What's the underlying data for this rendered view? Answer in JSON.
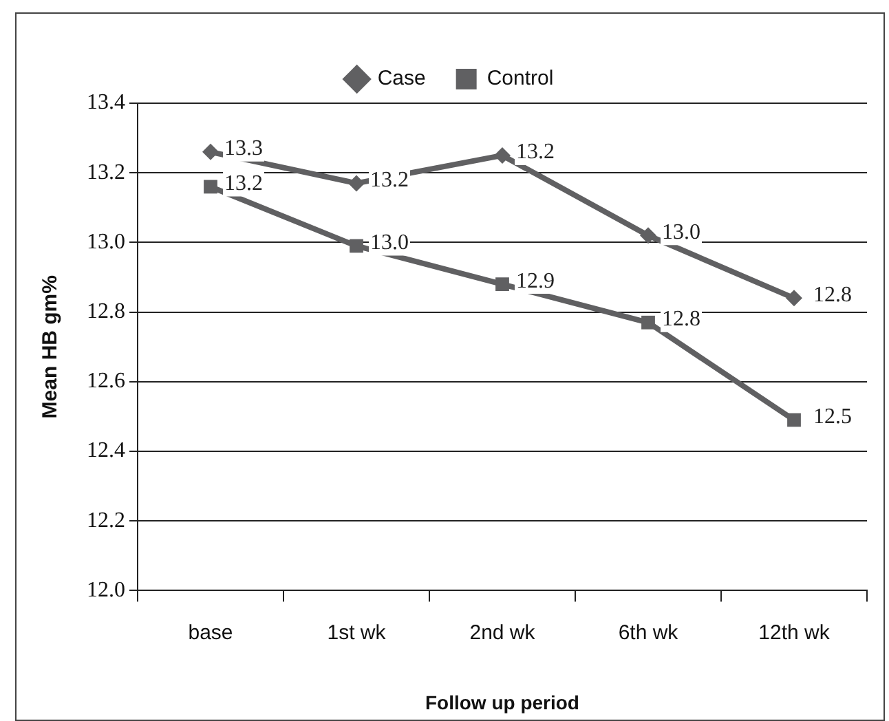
{
  "chart_data": {
    "type": "line",
    "xlabel": "Follow up period",
    "ylabel": "Mean HB gm%",
    "categories": [
      "base",
      "1st wk",
      "2nd wk",
      "6th wk",
      "12th wk"
    ],
    "series": [
      {
        "name": "Case",
        "color": "#606062",
        "marker": "diamond",
        "values": [
          13.26,
          13.17,
          13.25,
          13.02,
          12.84
        ],
        "value_labels": [
          "13.3",
          "13.2",
          "13.2",
          "13.0",
          "12.8"
        ]
      },
      {
        "name": "Control",
        "color": "#606062",
        "marker": "square",
        "values": [
          13.16,
          12.99,
          12.88,
          12.77,
          12.49
        ],
        "value_labels": [
          "13.2",
          "13.0",
          "12.9",
          "12.8",
          "12.5"
        ]
      }
    ],
    "ylim": [
      12.0,
      13.4
    ],
    "yticks": [
      {
        "value": 12.0,
        "label": "12.0"
      },
      {
        "value": 12.2,
        "label": "12.2"
      },
      {
        "value": 12.4,
        "label": "12.4"
      },
      {
        "value": 12.6,
        "label": "12.6"
      },
      {
        "value": 12.8,
        "label": "12.8"
      },
      {
        "value": 13.0,
        "label": "13.0"
      },
      {
        "value": 13.2,
        "label": "13.2"
      },
      {
        "value": 13.4,
        "label": "13.4"
      }
    ],
    "grid": "y",
    "legend": "top",
    "line_style": "solid"
  }
}
